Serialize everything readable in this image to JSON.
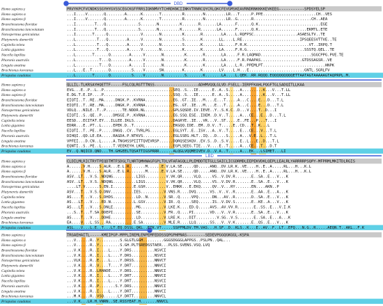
{
  "domains": [
    {
      "label": "DBD"
    },
    {
      "label": "LBD"
    }
  ],
  "species": [
    "Homo sapiens γ",
    "Homo sapiens α",
    "Homo sapiens β",
    "Branchiostoma floridae",
    "Branchiostoma lanceolatum",
    "Notospermus geniculatus",
    "Platynereis dumerilii",
    "Capitella teleta",
    "Lottia gigantea",
    "Nucella lapillus",
    "Phoronis australis",
    "Lingula anatina",
    "Brachionus koreanus",
    "Priapulus caudatus"
  ],
  "blocks": [
    {
      "sequences": [
        "PRVYKPCFVCNDKSSGYHYGVSSCEGCKGFFRRSIQKNMVYTCHRDKNCIINKVTRNRCQYCRLQKCFEVGMSKEAVRNDRNKKKKEVKEEG-----------SPDSYELSP",
        "...I....V.......Q........A......K.......T.........R........N.........LR...T.....P.PPE.......................CH..VES",
        "...I....V.......Q........A......K.......T.........R........N.........LR..G......R.........................CH..AEA",
        "...I........T...Q..............S.......N.........K.......R.......LA......F......Q.K...........................EGE",
        "...I........T...Q..............S.......N.........K.......R.......LA......F......Q.K.....................EKMTL.ETE",
        "...I.......T.....Q..............V.......N.........K.......R........LA....L.RQFPSC...................ASAESLTV..TE",
        "...L.........T...Q........A.....V.......N.........S.......K.......LL....L.RE.........................IPSQEESVTTVE..TE",
        "...L.........T...Q........A.....V.......N.........S.......K.......LL.....F.R.K...........................VT..IRPQ.T",
        "...L.........T...Q........A.....V.......N.........K.......K.......LA.....F.R.G.........................SSSTQ.QEL..TE",
        "...L.......T......Q........A.....V.......N.........K.......R.......LA.....F.R.LAQMAD......................SGGCPPG.PVE.TE",
        "...L..........T...Q........A.....V.......N.........K.......R.......LA.....F.R.PAAPAS..................GTDSSAGSR..VE",
        "...L..........T...Q........A.....I.......N.........K.......K.......LA....L.R..PPEMLPT...........................HNPK",
        "...L...E..T.......Q.........S....V......SN........K.......K.......LV....L.H...E........................GNTL.SGRLFV",
        "...L.......T......Q.........S....V.......N.........S.......K.......LA....L.QEK..RR.RQQQ.EQQQQQQQQQETTAATAGTAAAAAGTAQPRPL.M."
      ]
    },
    {
      "sequences": [
        "QLLIL-TLKRSAYHQETTF-----FSLCQLRGTTTNSS-------------------ADHMVQQLGLVD-FSELL-IERPFKAHLPQGFTGLSADQITLLKAA",
        "EVG...E..P..L..P..............................SEQ..S...IE......E..A..S.....A.........K...V...T.LL",
        "E.DG.T.E.IP....P..............................SSQ..S...IE......E..A..S.....A.........K...V...T.LL",
        "EIQTI..T..RE..MA.....DNGK.P..KVRNA............EG..GT..IE...M....E...T.....A...C....E...D...T.L",
        "EIQTI..T..RE..MA.....DNGK.P..KVRNA............EG..GT..IE...M....E...T.....A...C....E...D...T.L",
        "VDLQ...NILE..T..P.......TE.NDDR.NL............GPLSQSDE.IV.IEVE..Y..S.K.C..D...V....T..D...I",
        "EIQTI..S..QE..P.....DMSGE.P..KVRNA............EG.SSQ.ESE..IDEM..D.V..T.....A...CE...E...D...T.L",
        "EESD...ECITAT.EY...ILLEE.IKLS.................DAGRYE..IE...VR...V..ST.....E..FE...P...T...I",
        "EDRR...E..PT..L.....EPEK.D..T.................EKGQQ.IDE..EM..D.V..T.....E..CD...T..K...L",
        "EIQTI..T..PE..P.....DNGQ..CV..TVRLPG..........EGLSYT..E..ISV...A..V..T.....E...CE...V...T.L",
        "DIHQI..QD.LE.EA.....RAGDA.P.NTKVS.............EGLSSEG.HLT..IQ...D....S.....A...V.E..L...T.L",
        "VPFEI...D.CN..L.....A.TNGHSSPIITTQVEVRSP......DQRQSESKQV..EV.S..D..S.V.....E..L...E..D...T.L",
        "EQNTI..S..PE..L.....T.VEEKEYH.LKRL............EGPLSEEG.TIE...V....E..T.....A...CE...T...D.T",
        "EV..Q.NQICD.QND...TH.GHGEELTQSATTIGSPRRR......ALQGLVQQMEIVEV.D..V.A..T.....A...EK...LSIMET...LI"
      ]
    },
    {
      "sequences": [
        "CLDILMLRICTRYTPEQDTMTFSDGLTLNRTQMHNAGFGPLTDLVFAFAGQLLPLEMDDTETGLLSAICLICGDRMDLEEPEKVDKLQEPLLEALRLYARRRRPSQPY-MFPRMLMKITDLRGIS",
        "A......V.H....S.ALR...E.L.R.......M......E.V.LA.SE.....QD.....ANQ..DV.LR.K..VE....H..E..A.....RL...H...K.L",
        "A......V.H....S.ALR...E.L.R.......M......E.V.LA.SE.....QD.....ANQ..DV.LR.K..VE....H..E..A.....RL...H...K.L",
        "ASV..LT...V.S..NDQNG..........LIGS.........V.VK.QR.....VLQ.....VS..V.DV.R.......E..SA..E...V...K",
        "ASV..LT...V.S..NDQNG..........LIGS.........V.VK.QR.....VLQ.....VS..V.DV.R.......E..SA..E...V...K",
        "....LT.V......S.EN.I.........E.GSH.........V..EHKK...E.EKQ.....QV..V...RY.......EN....AKN..P",
        "ASV...T...V.S.Q.DNV..........IES..........V.VNS.R....DVQ......VS..V..V..R.......E..AA..E...A...K",
        "AS....T...V...S.DHDS..........LD..N.......V.SR..Q.....VPQ......DN...AV..R.......D..SA..E...V...K",
        "AS...LT...V....ED.N..........L.GSV........V.IR..Q.....SEQ......IS..V.DV.S.......E..KE..A...V...K",
        "AS...LT...V...S.DNLE..........MG..........V.LKE.K....ED.Q.....AVS..AV.VV.R.......E..SS..E...V.I.K",
        "...S..T...T.SA.DDEPI..........SE..........V.FR..Q....PI.......VD...V..V.R.......E..SA..E...V...K",
        "AS....T...V....DDHE...........LD..........V.LRE.K....DIT.........V.SG..V.S.......E..SA..E...A...K",
        "EA....V...L.SS...RA..........E.SA.........V.MLE.R....LLQ......SS...V..V.K.......E..QS..E...V...K",
        "ASL...V...L.E..T...LT.EQ.DSSL.QKL..ETK.VT.....SSPFMLDV.TM.VAS...H.SF..D..KLS..K...E..AV..F..LT..EFQ...N.G..R.....AEQN.T..AKL..F.K"
      ]
    },
    {
      "sequences": [
        "TRGAEHAITL-----KMEIPGP-MPPLIREMLENPEMFEDDSSQPGPHPNAS--------SEDEVPGGQGKGGL-KSPA",
        "...V......R..Y.........S.GLGTLGGH.........GGGSDGGGLAPPGS..PSLPN..QAL...",
        "...V......R..Y.........S.GH.PLTSREDSSTAER...PLSS.SVENS.VSQ.LVQ",
        "...V.K....R..I....L....Y.DRS..........NSVCI",
        "...V.K....R..I....L....Y.DRS..........NSVCI",
        "...VLK....R..E....L....Y.DRSS.........NNVCT",
        "...V.K....R..V....T....Y.DRT..........NNVCI",
        "...V.K....R..LRHADE....Y.DRS..........NNVCI",
        "...V.K....R..I....L....Y.DRT..........NNVCI",
        "...V.K....R..I....L....Y.DRT..........NSVCI",
        "...V.K....R..P.......S.Y.DRS..........NNVCI",
        "...V.K....R..I....L....Y.DRT..........NNVCI",
        "...M.K....R..VSQ......LY.DRTT.........NNVCL",
        "...V.K...LR.H.VNRN..SE.RSSYEAT.H.......NNVCL"
      ]
    }
  ]
}
